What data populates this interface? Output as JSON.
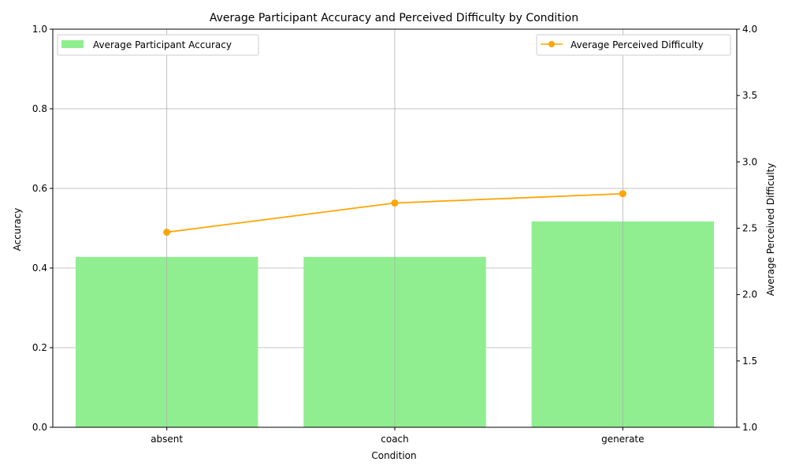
{
  "chart_data": {
    "type": "bar",
    "title": "Average Participant Accuracy and Perceived Difficulty by Condition",
    "xlabel": "Condition",
    "ylabel": "Accuracy",
    "y2label": "Average Perceived Difficulty",
    "categories": [
      "absent",
      "coach",
      "generate"
    ],
    "ylim": [
      0,
      1
    ],
    "yticks": [
      "0.0",
      "0.2",
      "0.4",
      "0.6",
      "0.8",
      "1.0"
    ],
    "y2lim": [
      1,
      4
    ],
    "y2ticks": [
      "1.0",
      "1.5",
      "2.0",
      "2.5",
      "3.0",
      "3.5",
      "4.0"
    ],
    "grid": true,
    "series": [
      {
        "name": "Average Participant Accuracy",
        "type": "bar",
        "axis": "left",
        "color": "#90ee90",
        "values": [
          0.428,
          0.428,
          0.517
        ]
      },
      {
        "name": "Average Perceived Difficulty",
        "type": "line",
        "axis": "right",
        "color": "#ffa500",
        "marker": "circle",
        "values": [
          2.47,
          2.69,
          2.76
        ]
      }
    ],
    "legend": {
      "bars": "top-left",
      "line": "top-right"
    }
  }
}
